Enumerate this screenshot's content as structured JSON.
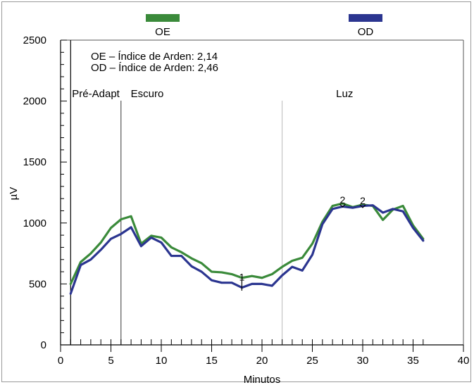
{
  "chart_data": {
    "type": "line",
    "xlabel": "Minutos",
    "ylabel": "µV",
    "xlim": [
      0,
      40
    ],
    "ylim": [
      0,
      2500
    ],
    "x_ticks": [
      0,
      5,
      10,
      15,
      20,
      25,
      30,
      35,
      40
    ],
    "y_ticks": [
      0,
      500,
      1000,
      1500,
      2000,
      2500
    ],
    "grid": false,
    "legend_swatches": [
      {
        "label": "OE",
        "color": "#3a8a3a"
      },
      {
        "label": "OD",
        "color": "#2b3590"
      }
    ],
    "legend_text": [
      {
        "text": "OE – Índice de Arden:  2,14",
        "color": "#3a8a3a"
      },
      {
        "text": "OD – Índice de Arden:  2,46",
        "color": "#2b3590"
      }
    ],
    "phases": [
      {
        "label": "Pré-Adapt",
        "start": 1
      },
      {
        "label": "Escuro",
        "start": 6
      },
      {
        "label": "Luz",
        "start": 22
      }
    ],
    "markers": [
      {
        "label": "1",
        "x": 18,
        "y": 540
      },
      {
        "label": "2",
        "x": 28,
        "y": 1160
      },
      {
        "label": "2",
        "x": 30,
        "y": 1155
      }
    ],
    "x": [
      1,
      2,
      3,
      4,
      5,
      6,
      7,
      8,
      9,
      10,
      11,
      12,
      13,
      14,
      15,
      16,
      17,
      18,
      19,
      20,
      21,
      22,
      23,
      24,
      25,
      26,
      27,
      28,
      29,
      30,
      31,
      32,
      33,
      34,
      35,
      36
    ],
    "series": [
      {
        "name": "OE",
        "color": "#3a8a3a",
        "values": [
          500,
          680,
          750,
          840,
          960,
          1030,
          1055,
          830,
          895,
          880,
          800,
          760,
          710,
          670,
          600,
          595,
          580,
          550,
          565,
          550,
          580,
          640,
          690,
          715,
          830,
          1010,
          1140,
          1160,
          1130,
          1150,
          1140,
          1025,
          1110,
          1140,
          980,
          870
        ]
      },
      {
        "name": "OD",
        "color": "#2b3590",
        "values": [
          420,
          655,
          700,
          780,
          870,
          910,
          965,
          810,
          880,
          840,
          730,
          730,
          645,
          600,
          530,
          510,
          510,
          470,
          500,
          500,
          485,
          570,
          640,
          610,
          740,
          990,
          1115,
          1135,
          1125,
          1140,
          1145,
          1085,
          1115,
          1095,
          960,
          855
        ]
      }
    ]
  }
}
